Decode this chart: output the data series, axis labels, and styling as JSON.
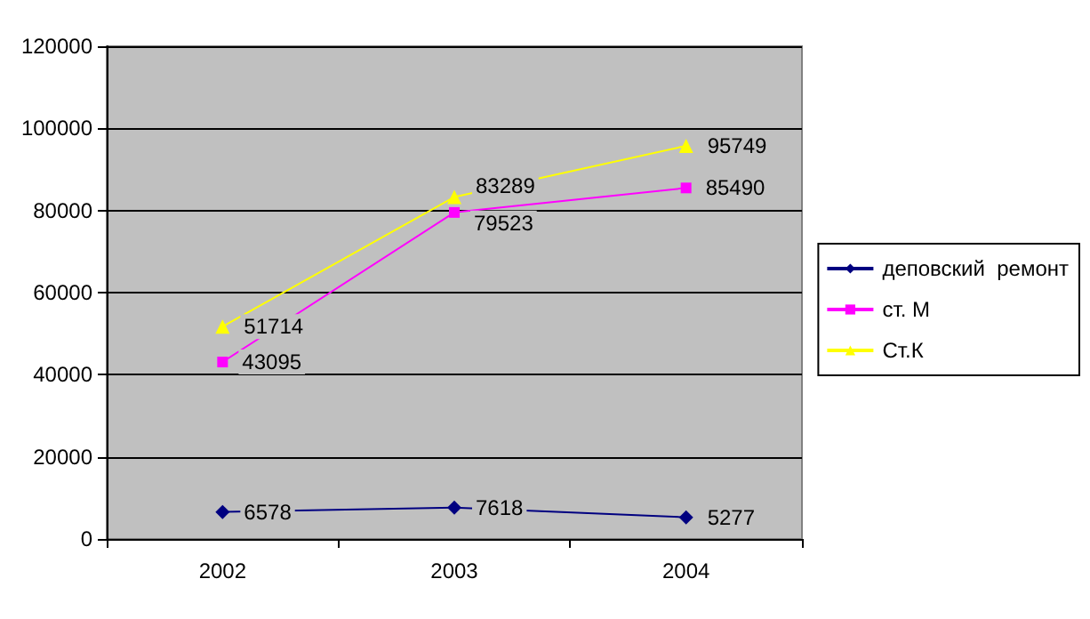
{
  "chart_data": {
    "type": "line",
    "categories": [
      "2002",
      "2003",
      "2004"
    ],
    "series": [
      {
        "name": "деповский  ремонт",
        "color": "#000080",
        "marker": "diamond",
        "values": [
          6578,
          7618,
          5277
        ]
      },
      {
        "name": "ст. М",
        "color": "#ff00ff",
        "marker": "square",
        "values": [
          43095,
          79523,
          85490
        ]
      },
      {
        "name": "Ст.К",
        "color": "#ffff00",
        "marker": "triangle",
        "values": [
          51714,
          83289,
          95749
        ]
      }
    ],
    "ylim": [
      0,
      120000
    ],
    "yticks": [
      0,
      20000,
      40000,
      60000,
      80000,
      100000,
      120000
    ],
    "grid": "y",
    "legend": "right",
    "data_labels": true
  }
}
